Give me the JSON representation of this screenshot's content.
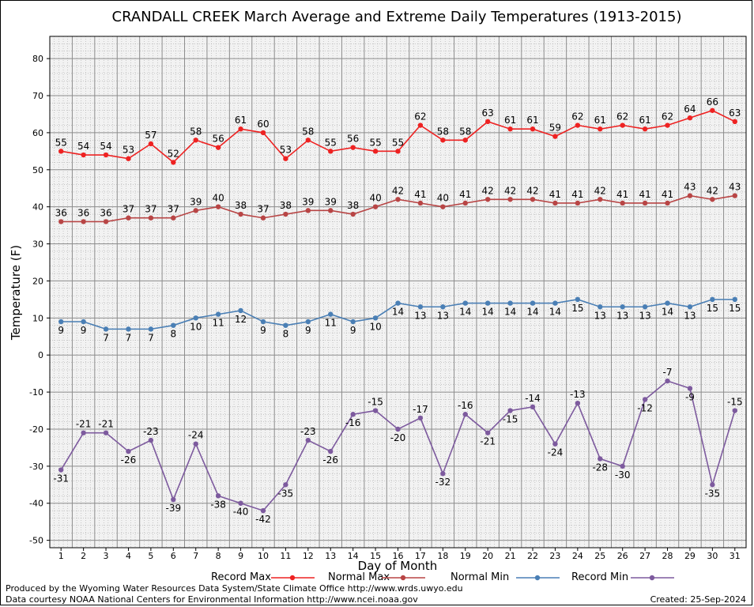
{
  "chart_data": {
    "type": "line",
    "title": "CRANDALL CREEK March Average and Extreme Daily Temperatures (1913-2015)",
    "xlabel": "Day of Month",
    "ylabel": "Temperature (F)",
    "x": [
      1,
      2,
      3,
      4,
      5,
      6,
      7,
      8,
      9,
      10,
      11,
      12,
      13,
      14,
      15,
      16,
      17,
      18,
      19,
      20,
      21,
      22,
      23,
      24,
      25,
      26,
      27,
      28,
      29,
      30,
      31
    ],
    "ylim": [
      -52,
      86
    ],
    "y_ticks": [
      -50,
      -40,
      -30,
      -20,
      -10,
      0,
      10,
      20,
      30,
      40,
      50,
      60,
      70,
      80
    ],
    "grid": true,
    "legend_position": "bottom",
    "series": [
      {
        "name": "Record Max",
        "color": "#ee2222",
        "label_position": "above",
        "values": [
          55,
          54,
          54,
          53,
          57,
          52,
          58,
          56,
          61,
          60,
          53,
          58,
          55,
          56,
          55,
          55,
          62,
          58,
          58,
          63,
          61,
          61,
          59,
          62,
          61,
          62,
          61,
          62,
          64,
          66,
          63
        ]
      },
      {
        "name": "Normal Max",
        "color": "#b84545",
        "label_position": "above",
        "values": [
          36,
          36,
          36,
          37,
          37,
          37,
          39,
          40,
          38,
          37,
          38,
          39,
          39,
          38,
          40,
          42,
          41,
          40,
          41,
          42,
          42,
          42,
          41,
          41,
          42,
          41,
          41,
          41,
          43,
          42,
          43
        ]
      },
      {
        "name": "Normal Min",
        "color": "#4a7fb5",
        "label_position": "below",
        "values": [
          9,
          9,
          7,
          7,
          7,
          8,
          10,
          11,
          12,
          9,
          8,
          9,
          11,
          9,
          10,
          14,
          13,
          13,
          14,
          14,
          14,
          14,
          14,
          15,
          13,
          13,
          13,
          14,
          13,
          15,
          15
        ]
      },
      {
        "name": "Record Min",
        "color": "#7d5a9e",
        "label_position": "alternate",
        "values": [
          -31,
          -21,
          -21,
          -26,
          -23,
          -39,
          -24,
          -38,
          -40,
          -42,
          -35,
          -23,
          -26,
          -16,
          -15,
          -20,
          -17,
          -32,
          -16,
          -21,
          -15,
          -14,
          -24,
          -13,
          -28,
          -30,
          -12,
          -7,
          -9,
          -35,
          -15
        ]
      }
    ]
  },
  "footer": {
    "line1": "Produced by the Wyoming Water Resources Data System/State Climate Office http://www.wrds.uwyo.edu",
    "line2": "Data courtesy NOAA National Centers for Environmental Information http://www.ncei.noaa.gov",
    "created": "Created:  25-Sep-2024"
  }
}
